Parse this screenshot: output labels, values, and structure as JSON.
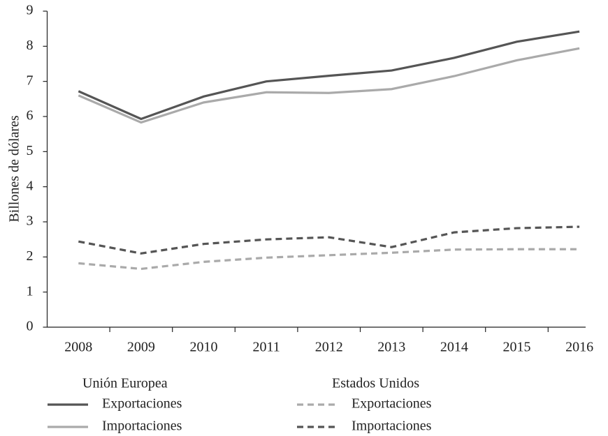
{
  "chart_data": {
    "type": "line",
    "y_label": "Billones de dólares",
    "categories": [
      "2008",
      "2009",
      "2010",
      "2011",
      "2012",
      "2013",
      "2014",
      "2015",
      "2016"
    ],
    "ylim": [
      0,
      9
    ],
    "yticks": [
      0,
      1,
      2,
      3,
      4,
      5,
      6,
      7,
      8,
      9
    ],
    "series": [
      {
        "group": "Unión Europea",
        "name": "Exportaciones",
        "color": "#555555",
        "dashed": false,
        "values": [
          6.72,
          5.93,
          6.57,
          7.0,
          7.16,
          7.31,
          7.67,
          8.13,
          8.42
        ]
      },
      {
        "group": "Unión Europea",
        "name": "Importaciones",
        "color": "#aaaaaa",
        "dashed": false,
        "values": [
          6.6,
          5.83,
          6.4,
          6.69,
          6.67,
          6.78,
          7.15,
          7.6,
          7.94
        ]
      },
      {
        "group": "Estados Unidos",
        "name": "Exportaciones",
        "color": "#aaaaaa",
        "dashed": true,
        "values": [
          1.82,
          1.66,
          1.86,
          1.98,
          2.05,
          2.12,
          2.21,
          2.22,
          2.22
        ]
      },
      {
        "group": "Estados Unidos",
        "name": "Importaciones",
        "color": "#555555",
        "dashed": true,
        "values": [
          2.44,
          2.1,
          2.37,
          2.5,
          2.56,
          2.28,
          2.7,
          2.82,
          2.86
        ]
      }
    ]
  }
}
